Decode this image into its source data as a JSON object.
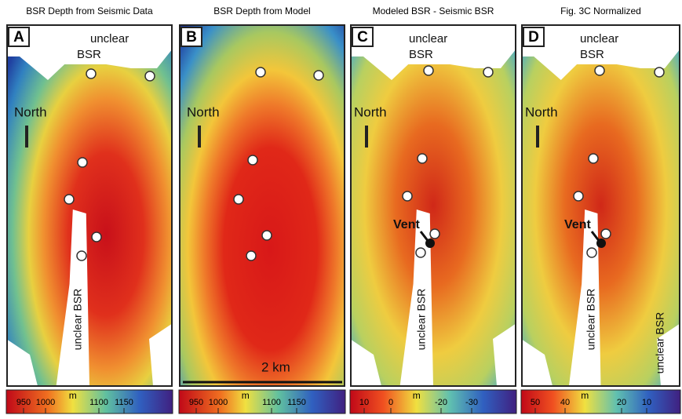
{
  "panels": [
    {
      "title": "BSR Depth from Seismic Data",
      "letter": "A",
      "labels": [
        "unclear",
        "BSR",
        "North",
        "unclear BSR"
      ],
      "colorbar": {
        "unit": "m",
        "ticks": [
          "950",
          "1000",
          "1100",
          "1150"
        ]
      }
    },
    {
      "title": "BSR Depth from Model",
      "letter": "B",
      "labels": [
        "North",
        "2 km"
      ],
      "colorbar": {
        "unit": "m",
        "ticks": [
          "950",
          "1000",
          "1100",
          "1150"
        ]
      }
    },
    {
      "title": "Modeled BSR - Seismic BSR",
      "letter": "C",
      "labels": [
        "unclear",
        "BSR",
        "North",
        "Vent",
        "unclear BSR"
      ],
      "colorbar": {
        "unit": "m",
        "ticks": [
          "10",
          "0",
          "-20",
          "-30"
        ]
      }
    },
    {
      "title": "Fig. 3C  Normalized",
      "letter": "D",
      "labels": [
        "unclear",
        "BSR",
        "North",
        "Vent",
        "unclear BSR",
        "unclear BSR"
      ],
      "colorbar": {
        "unit": "m",
        "ticks": [
          "50",
          "40",
          "20",
          "10"
        ]
      }
    }
  ]
}
